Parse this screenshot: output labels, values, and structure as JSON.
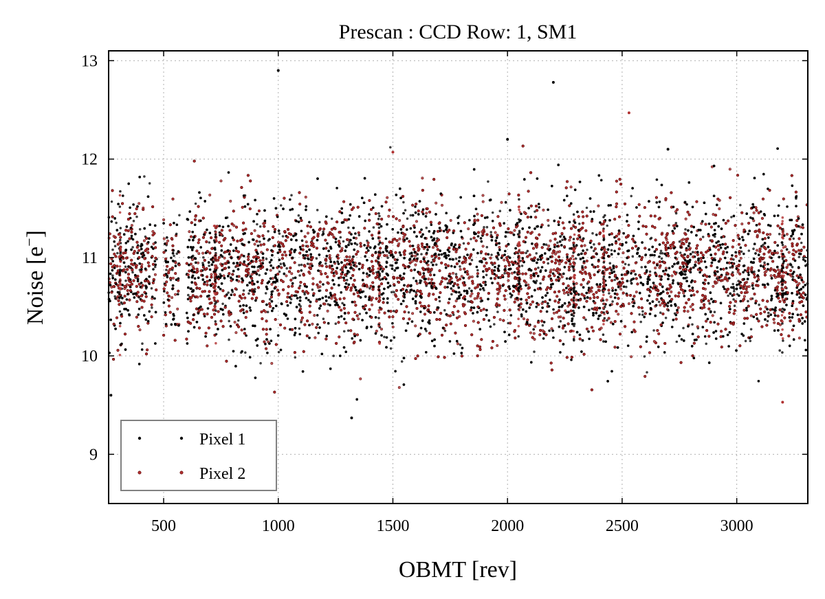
{
  "chart_data": {
    "type": "scatter",
    "title": "Prescan : CCD Row: 1, SM1",
    "xlabel": "OBMT [rev]",
    "ylabel_text": "Noise [e",
    "ylabel_sup": "−",
    "ylabel_close": "]",
    "xlim": [
      260,
      3310
    ],
    "ylim": [
      8.5,
      13.1
    ],
    "xticks": [
      500,
      1000,
      1500,
      2000,
      2500,
      3000
    ],
    "yticks": [
      9,
      10,
      11,
      12,
      13
    ],
    "grid": true,
    "legend_position": "lower-left",
    "series": [
      {
        "name": "Pixel 1",
        "color": "#000000",
        "marker": "dot",
        "center": 10.85,
        "spread": 0.38
      },
      {
        "name": "Pixel 2",
        "color": "#b03030",
        "marker": "dot",
        "center": 10.85,
        "spread": 0.36
      }
    ],
    "x_range_observed": [
      260,
      3310
    ],
    "gaps": [
      [
        470,
        500
      ],
      [
        570,
        600
      ]
    ],
    "outliers": [
      {
        "series": "Pixel 1",
        "x": 1000,
        "y": 12.9
      },
      {
        "series": "Pixel 1",
        "x": 2200,
        "y": 12.78
      },
      {
        "series": "Pixel 2",
        "x": 2530,
        "y": 12.47
      },
      {
        "series": "Pixel 1",
        "x": 1320,
        "y": 9.37
      },
      {
        "series": "Pixel 2",
        "x": 3200,
        "y": 9.53
      },
      {
        "series": "Pixel 1",
        "x": 270,
        "y": 9.6
      },
      {
        "series": "Pixel 2",
        "x": 1500,
        "y": 12.07
      },
      {
        "series": "Pixel 1",
        "x": 2000,
        "y": 12.2
      },
      {
        "series": "Pixel 1",
        "x": 2700,
        "y": 12.1
      }
    ]
  }
}
